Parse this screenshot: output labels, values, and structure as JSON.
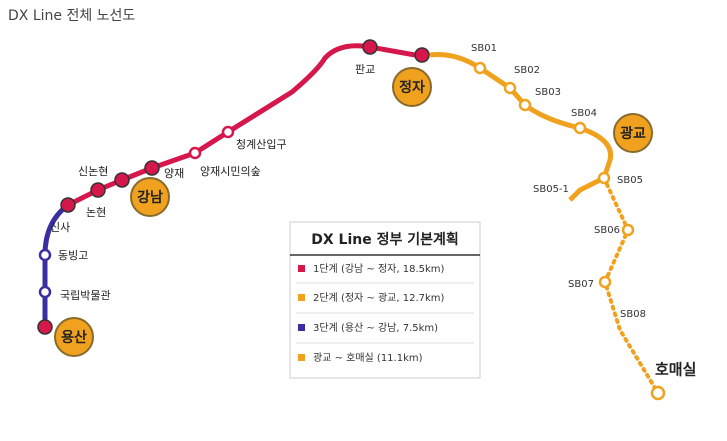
{
  "title": "DX Line 전체 노선도",
  "stations": {
    "museum": "국립박물관",
    "dongbinggo": "동빙고",
    "sinsa": "신사",
    "nonhyeon": "논현",
    "sinnonhyeon": "신논현",
    "yangjae": "양재",
    "forest": "양재시민의숲",
    "cheonggye": "청계산입구",
    "pangyo": "판교",
    "sb01": "SB01",
    "sb02": "SB02",
    "sb03": "SB03",
    "sb04": "SB04",
    "sb05": "SB05",
    "sb05_1": "SB05-1",
    "sb06": "SB06",
    "sb07": "SB07",
    "sb08": "SB08",
    "homaesil": "호매실"
  },
  "hubs": {
    "yongsan": "용산",
    "gangnam": "강남",
    "jeongja": "정자",
    "gwanggyo": "광교"
  },
  "legend": {
    "title": "DX Line 정부 기본계획",
    "items": [
      "1단계 (강남 ~ 정자, 18.5km)",
      "2단계 (정자 ~ 광교, 12.7km)",
      "3단계 (용산 ~ 강남, 7.5km)",
      "광교 ~ 호매실 (11.1km)"
    ]
  }
}
